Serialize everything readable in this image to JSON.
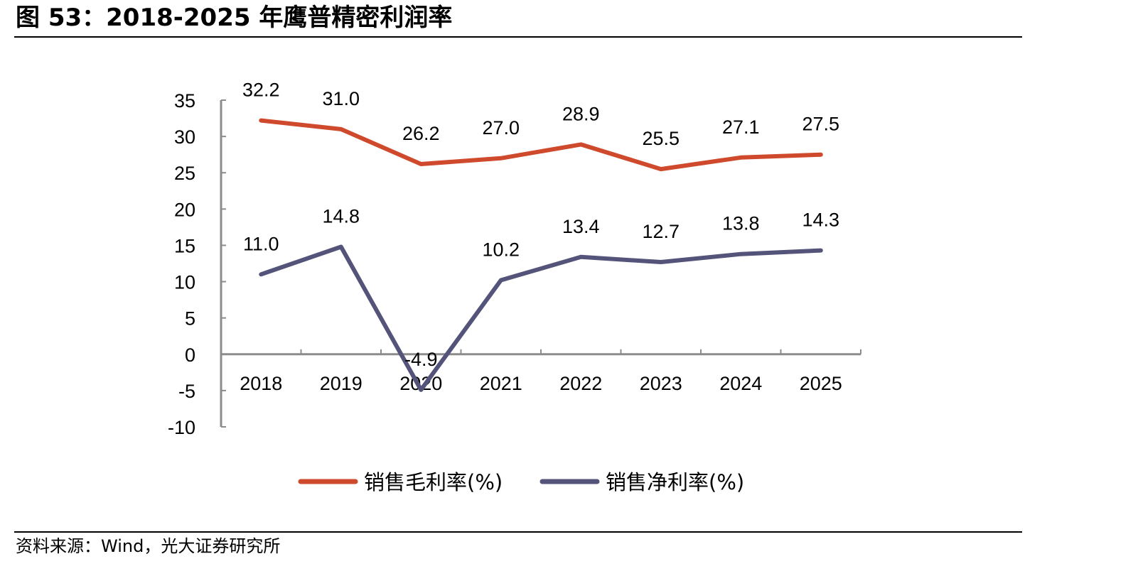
{
  "header": {
    "title": "图 53：2018-2025 年鹰普精密利润率"
  },
  "footer": {
    "source": "资料来源：Wind，光大证券研究所"
  },
  "chart_data": {
    "type": "line",
    "title": "",
    "xlabel": "",
    "ylabel": "",
    "categories": [
      "2018",
      "2019",
      "2020",
      "2021",
      "2022",
      "2023",
      "2024",
      "2025"
    ],
    "yticks": [
      "35",
      "30",
      "25",
      "20",
      "15",
      "10",
      "5",
      "0",
      "-5",
      "-10"
    ],
    "ylim": [
      -10,
      35
    ],
    "grid": false,
    "legend_position": "bottom",
    "series": [
      {
        "name": "销售毛利率(%)",
        "color": "#cf4a2c",
        "values": [
          32.2,
          31.0,
          26.2,
          27.0,
          28.9,
          25.5,
          27.1,
          27.5
        ],
        "labels": [
          "32.2",
          "31.0",
          "26.2",
          "27.0",
          "28.9",
          "25.5",
          "27.1",
          "27.5"
        ]
      },
      {
        "name": "销售净利率(%)",
        "color": "#54547a",
        "values": [
          11.0,
          14.8,
          -4.9,
          10.2,
          13.4,
          12.7,
          13.8,
          14.3
        ],
        "labels": [
          "11.0",
          "14.8",
          "-4.9",
          "10.2",
          "13.4",
          "12.7",
          "13.8",
          "14.3"
        ]
      }
    ]
  }
}
